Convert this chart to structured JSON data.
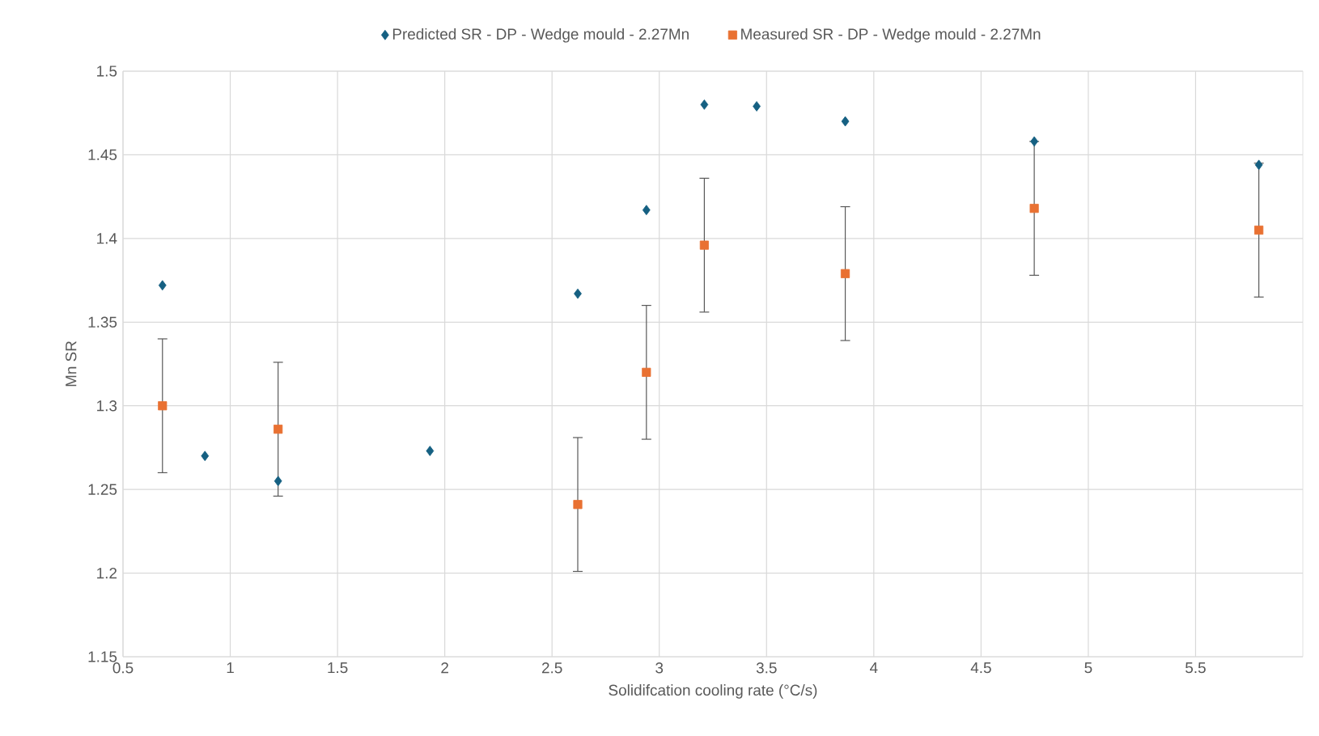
{
  "chart_data": {
    "type": "scatter",
    "xlabel": "Solidifcation cooling rate (°C/s)",
    "ylabel": "Mn SR",
    "xlim": [
      0.5,
      6
    ],
    "xticks": [
      0.5,
      1,
      1.5,
      2,
      2.5,
      3,
      3.5,
      4,
      4.5,
      5,
      5.5
    ],
    "ylim": [
      1.15,
      1.5
    ],
    "yticks": [
      1.15,
      1.2,
      1.25,
      1.3,
      1.35,
      1.4,
      1.45,
      1.5
    ],
    "grid": true,
    "legend": "top",
    "series": [
      {
        "name": "Predicted SR - DP - Wedge mould - 2.27Mn",
        "color": "#156082",
        "marker": "diamond",
        "x": [
          0.684,
          0.882,
          1.223,
          1.931,
          2.62,
          2.94,
          3.21,
          3.454,
          3.867,
          4.748,
          5.795
        ],
        "values": [
          1.372,
          1.27,
          1.255,
          1.273,
          1.367,
          1.417,
          1.48,
          1.479,
          1.47,
          1.458,
          1.444
        ]
      },
      {
        "name": "Measured SR - DP - Wedge mould - 2.27Mn",
        "color": "#e97132",
        "marker": "square",
        "x": [
          0.684,
          1.223,
          2.62,
          2.94,
          3.21,
          3.867,
          4.748,
          5.795
        ],
        "values": [
          1.3,
          1.286,
          1.241,
          1.32,
          1.396,
          1.379,
          1.418,
          1.405
        ],
        "errors": [
          0.04,
          0.04,
          0.04,
          0.04,
          0.04,
          0.04,
          0.04,
          0.04
        ]
      }
    ]
  }
}
